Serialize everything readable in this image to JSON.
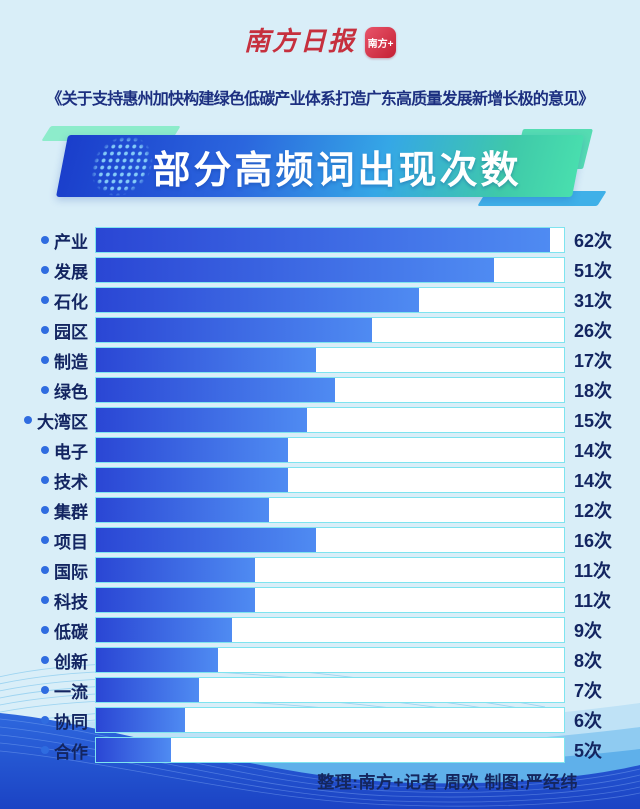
{
  "page": {
    "background_color": "#d9eef8"
  },
  "header": {
    "logo_text": "南方日报",
    "logo_badge_text": "南方+",
    "brand_red": "#c6303e",
    "subtitle": "《关于支持惠州加快构建绿色低碳产业体系打造广东高质量发展新增长极的意见》"
  },
  "banner": {
    "title": "部分高频词出现次数",
    "gradient": [
      "#1a3ecb",
      "#2b66de",
      "#35a7e6",
      "#49dfae"
    ],
    "accent_mint": "#8deccb",
    "accent_blue": "#3fb0e8"
  },
  "chart_data": {
    "type": "bar",
    "orientation": "horizontal",
    "title": "部分高频词出现次数",
    "unit": "次",
    "categories": [
      "产业",
      "发展",
      "石化",
      "园区",
      "制造",
      "绿色",
      "大湾区",
      "电子",
      "技术",
      "集群",
      "项目",
      "国际",
      "科技",
      "低碳",
      "创新",
      "一流",
      "协同",
      "合作"
    ],
    "values": [
      62,
      51,
      31,
      26,
      17,
      18,
      15,
      14,
      14,
      12,
      16,
      11,
      11,
      9,
      8,
      7,
      6,
      5
    ],
    "value_labels": [
      "62次",
      "51次",
      "31次",
      "26次",
      "17次",
      "18次",
      "15次",
      "14次",
      "14次",
      "12次",
      "16次",
      "11次",
      "11次",
      "9次",
      "8次",
      "7次",
      "6次",
      "5次"
    ],
    "bar_fill_pct": [
      97,
      85,
      69,
      59,
      47,
      51,
      45,
      41,
      41,
      37,
      47,
      34,
      34,
      29,
      26,
      22,
      19,
      16
    ],
    "legend": "none",
    "gridlines": "off",
    "colors": {
      "bar_gradient": [
        "#2a46d4",
        "#4f8bf2"
      ],
      "track_background": "#ffffff",
      "track_border": "#7ee4ef",
      "bullet": "#2f6ce0",
      "label_text": "#132561"
    }
  },
  "footer": {
    "credit": "整理:南方+记者 周欢  制图:严经纬"
  }
}
